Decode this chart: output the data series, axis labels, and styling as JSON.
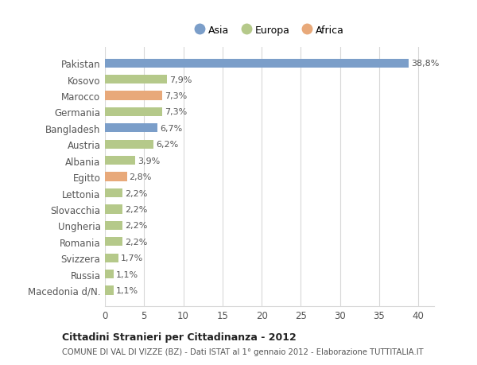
{
  "categories": [
    "Pakistan",
    "Kosovo",
    "Marocco",
    "Germania",
    "Bangladesh",
    "Austria",
    "Albania",
    "Egitto",
    "Lettonia",
    "Slovacchia",
    "Ungheria",
    "Romania",
    "Svizzera",
    "Russia",
    "Macedonia d/N."
  ],
  "values": [
    38.8,
    7.9,
    7.3,
    7.3,
    6.7,
    6.2,
    3.9,
    2.8,
    2.2,
    2.2,
    2.2,
    2.2,
    1.7,
    1.1,
    1.1
  ],
  "labels": [
    "38,8%",
    "7,9%",
    "7,3%",
    "7,3%",
    "6,7%",
    "6,2%",
    "3,9%",
    "2,8%",
    "2,2%",
    "2,2%",
    "2,2%",
    "2,2%",
    "1,7%",
    "1,1%",
    "1,1%"
  ],
  "continents": [
    "Asia",
    "Europa",
    "Africa",
    "Europa",
    "Asia",
    "Europa",
    "Europa",
    "Africa",
    "Europa",
    "Europa",
    "Europa",
    "Europa",
    "Europa",
    "Europa",
    "Europa"
  ],
  "colors": {
    "Asia": "#7b9ec9",
    "Europa": "#b5c98a",
    "Africa": "#e8a97a"
  },
  "title": "Cittadini Stranieri per Cittadinanza - 2012",
  "subtitle": "COMUNE DI VAL DI VIZZE (BZ) - Dati ISTAT al 1° gennaio 2012 - Elaborazione TUTTITALIA.IT",
  "xlim": [
    0,
    42
  ],
  "xticks": [
    0,
    5,
    10,
    15,
    20,
    25,
    30,
    35,
    40
  ],
  "background_color": "#ffffff",
  "grid_color": "#d8d8d8",
  "bar_height": 0.55,
  "label_fontsize": 8,
  "ytick_fontsize": 8.5,
  "xtick_fontsize": 8.5
}
